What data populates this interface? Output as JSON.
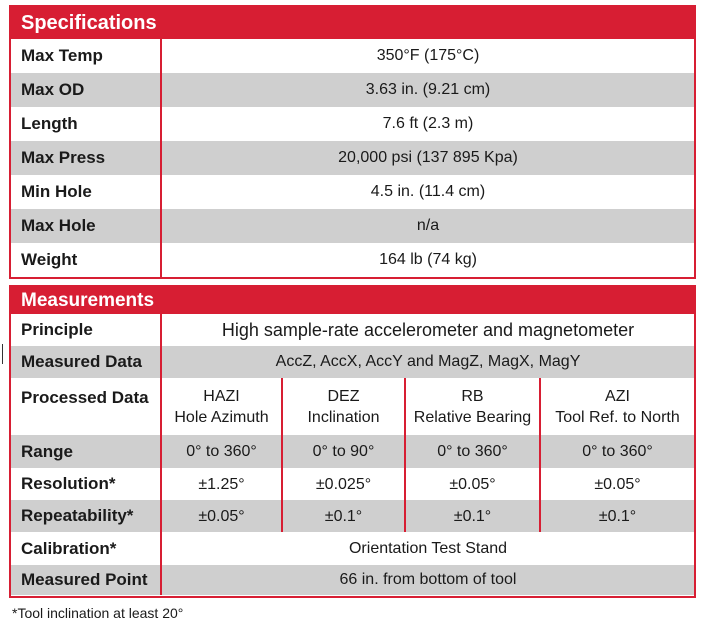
{
  "specifications": {
    "title": "Specifications",
    "rows": [
      {
        "label": "Max Temp",
        "value": "350°F (175°C)"
      },
      {
        "label": "Max OD",
        "value": "3.63 in. (9.21 cm)"
      },
      {
        "label": "Length",
        "value": "7.6 ft (2.3 m)"
      },
      {
        "label": "Max Press",
        "value": "20,000 psi (137 895 Kpa)"
      },
      {
        "label": "Min Hole",
        "value": "4.5 in. (11.4 cm)"
      },
      {
        "label": "Max Hole",
        "value": "n/a"
      },
      {
        "label": "Weight",
        "value": "164 lb (74 kg)"
      }
    ]
  },
  "measurements": {
    "title": "Measurements",
    "principle": {
      "label": "Principle",
      "value": "High sample-rate accelerometer and magnetometer"
    },
    "measured_data": {
      "label": "Measured Data",
      "value": "AccZ, AccX, AccY and MagZ, MagX, MagY"
    },
    "processed_data": {
      "label": "Processed Data",
      "columns": [
        {
          "code": "HAZI",
          "name": "Hole Azimuth"
        },
        {
          "code": "DEZ",
          "name": "Inclination"
        },
        {
          "code": "RB",
          "name": "Relative Bearing"
        },
        {
          "code": "AZI",
          "name": "Tool Ref. to North"
        }
      ]
    },
    "range": {
      "label": "Range",
      "values": [
        "0° to 360°",
        "0° to 90°",
        "0° to 360°",
        "0° to 360°"
      ]
    },
    "resolution": {
      "label": "Resolution*",
      "values": [
        "±1.25°",
        "±0.025°",
        "±0.05°",
        "±0.05°"
      ]
    },
    "repeatability": {
      "label": "Repeatability*",
      "values": [
        "±0.05°",
        "±0.1°",
        "±0.1°",
        "±0.1°"
      ]
    },
    "calibration": {
      "label": "Calibration*",
      "value": "Orientation Test Stand"
    },
    "measured_point": {
      "label": "Measured Point",
      "value": "66 in. from bottom of tool"
    }
  },
  "footnote": "*Tool inclination at least 20°",
  "colors": {
    "accent": "#d71e33",
    "stripe": "#cfcfcf"
  }
}
